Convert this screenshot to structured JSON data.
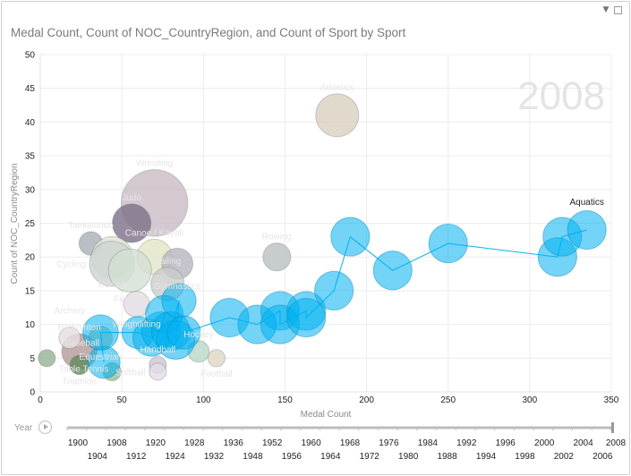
{
  "chart_data": {
    "type": "scatter",
    "subtype": "bubble",
    "title": "Medal Count, Count of NOC_CountryRegion, and Count of Sport by Sport",
    "xlabel": "Medal Count",
    "ylabel": "Count of NOC_CountryRegion",
    "xlim": [
      0,
      350
    ],
    "ylim": [
      0,
      50
    ],
    "xticks": [
      0,
      50,
      100,
      150,
      200,
      250,
      300,
      350
    ],
    "yticks": [
      0,
      5,
      10,
      15,
      20,
      25,
      30,
      35,
      40,
      45,
      50
    ],
    "grid": true,
    "play_axis_value": "2008",
    "highlight_color": "#00B0F0",
    "trail": {
      "name": "Aquatics",
      "points": [
        {
          "x": 39,
          "y": 4.4,
          "size": 3
        },
        {
          "x": 37,
          "y": 8.8,
          "size": 3.3
        },
        {
          "x": 60,
          "y": 8.8,
          "size": 3
        },
        {
          "x": 68,
          "y": 8,
          "size": 3.4
        },
        {
          "x": 74,
          "y": 9,
          "size": 3.6
        },
        {
          "x": 76,
          "y": 11.5,
          "size": 3.5
        },
        {
          "x": 80,
          "y": 9,
          "size": 3.6
        },
        {
          "x": 85,
          "y": 13.5,
          "size": 3.2
        },
        {
          "x": 83,
          "y": 7.7,
          "size": 3.6
        },
        {
          "x": 88,
          "y": 8.8,
          "size": 3.1
        },
        {
          "x": 116,
          "y": 11,
          "size": 3.6
        },
        {
          "x": 133,
          "y": 10,
          "size": 3.6
        },
        {
          "x": 147,
          "y": 12,
          "size": 3.6
        },
        {
          "x": 147,
          "y": 10,
          "size": 3.6
        },
        {
          "x": 163,
          "y": 12,
          "size": 3.6
        },
        {
          "x": 163,
          "y": 11,
          "size": 3.6
        },
        {
          "x": 180,
          "y": 15,
          "size": 3.6
        },
        {
          "x": 190,
          "y": 23,
          "size": 3.6
        },
        {
          "x": 216,
          "y": 18,
          "size": 3.6
        },
        {
          "x": 250,
          "y": 22,
          "size": 3.6
        },
        {
          "x": 317,
          "y": 20,
          "size": 3.6
        },
        {
          "x": 320,
          "y": 23,
          "size": 3.6
        },
        {
          "x": 335,
          "y": 24,
          "size": 3.6
        }
      ]
    },
    "bubbles": [
      {
        "name": "Athletics",
        "x": 182,
        "y": 41,
        "size": 4,
        "color": "#d8cfbf"
      },
      {
        "name": "Wrestling",
        "x": 70,
        "y": 28,
        "size": 6.2,
        "color": "#cbbcc6"
      },
      {
        "name": "Judo",
        "x": 56,
        "y": 25,
        "size": 3.6,
        "color": "#7c7088"
      },
      {
        "name": "Taekwondo",
        "x": 31,
        "y": 22,
        "size": 2.2,
        "color": "#a8b0b6"
      },
      {
        "name": "Canoe / Kayak",
        "x": 70,
        "y": 20,
        "size": 3.3,
        "color": "#e3e6c4"
      },
      {
        "name": "Boxing",
        "x": 44,
        "y": 20,
        "size": 3.8,
        "color": "#dfe3d2"
      },
      {
        "name": "Cycling",
        "x": 44,
        "y": 19,
        "size": 4.2,
        "color": "#cdd3d1"
      },
      {
        "name": "Gymnastics",
        "x": 84,
        "y": 19,
        "size": 2.9,
        "color": "#b6b4c2"
      },
      {
        "name": "Fencing",
        "x": 55,
        "y": 18,
        "size": 4,
        "color": "#d3e0d3"
      },
      {
        "name": "Rowing",
        "x": 145,
        "y": 20,
        "size": 2.6,
        "color": "#b9bfc3"
      },
      {
        "name": "Sailing",
        "x": 78,
        "y": 16,
        "size": 3.1,
        "color": "#c9cdca"
      },
      {
        "name": "Weightlifting",
        "x": 59,
        "y": 13,
        "size": 2.4,
        "color": "#e2dce2"
      },
      {
        "name": "Equestrian",
        "x": 37,
        "y": 8,
        "size": 2.2,
        "color": "#a9c7b5"
      },
      {
        "name": "Hockey",
        "x": 97,
        "y": 6,
        "size": 2,
        "color": "#b8d8c8"
      },
      {
        "name": "Football",
        "x": 108,
        "y": 5,
        "size": 1.6,
        "color": "#ddd7c6"
      },
      {
        "name": "Handball",
        "x": 72,
        "y": 4,
        "size": 1.6,
        "color": "#cec6d2"
      },
      {
        "name": "Softball",
        "x": 72,
        "y": 3,
        "size": 1.6,
        "color": "#e4dde6"
      },
      {
        "name": "Badminton",
        "x": 24,
        "y": 6,
        "size": 3.3,
        "color": "#b49a9a"
      },
      {
        "name": "Archery",
        "x": 18,
        "y": 8,
        "size": 2,
        "color": "#e6dde0"
      },
      {
        "name": "Triathlon",
        "x": 24,
        "y": 4,
        "size": 1.8,
        "color": "#5f8a5f"
      },
      {
        "name": "Table Tennis",
        "x": 4,
        "y": 5,
        "size": 1.6,
        "color": "#93b393"
      },
      {
        "name": "Baseball",
        "x": 44,
        "y": 3,
        "size": 1.7,
        "color": "#94bd9e"
      }
    ]
  },
  "play_axis": {
    "label": "Year",
    "current": "2008",
    "years_top": [
      "1900",
      "1908",
      "1920",
      "1928",
      "1936",
      "1952",
      "1960",
      "1968",
      "1976",
      "1984",
      "1992",
      "1996",
      "2000",
      "2004",
      "2008"
    ],
    "years_bottom": [
      "1904",
      "1912",
      "1924",
      "1932",
      "1948",
      "1956",
      "1964",
      "1972",
      "1980",
      "1988",
      "1994",
      "1998",
      "2002",
      "2006"
    ]
  },
  "toolbar": {
    "filter_icon": "filter-icon",
    "popout_icon": "popout-icon"
  }
}
